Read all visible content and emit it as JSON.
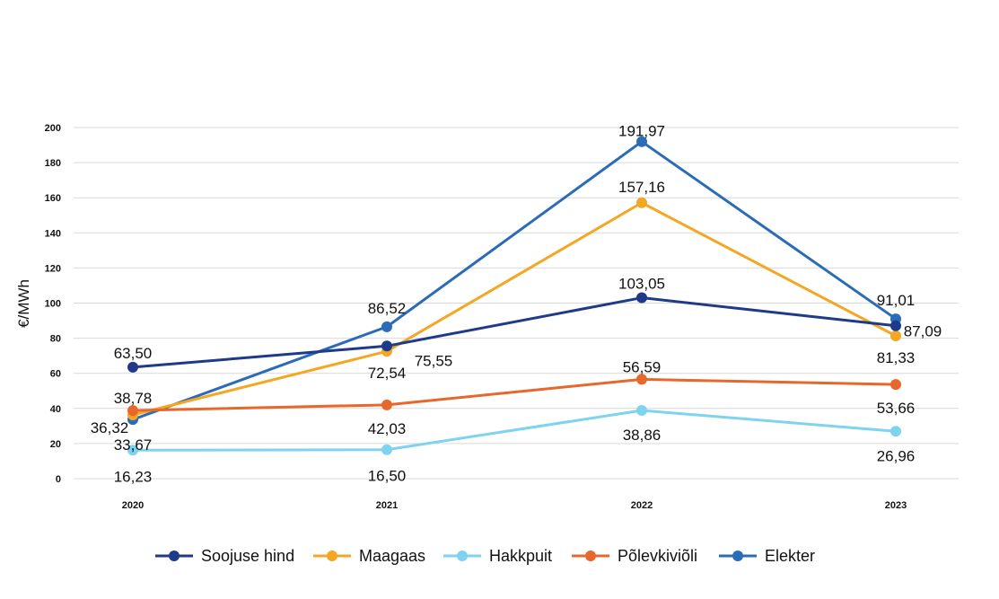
{
  "chart_data": {
    "type": "line",
    "ylabel": "€/MWh",
    "xlabel": "",
    "ylim": [
      0,
      200
    ],
    "yticks": [
      0,
      20,
      40,
      60,
      80,
      100,
      120,
      140,
      160,
      180,
      200
    ],
    "categories": [
      "2020",
      "2021",
      "2022",
      "2023"
    ],
    "grid": true,
    "legend_position": "bottom",
    "series": [
      {
        "name": "Soojuse hind",
        "color": "#1f3a8a",
        "values": [
          63.5,
          75.55,
          103.05,
          87.09
        ],
        "labels": [
          "63,50",
          "75,55",
          "103,05",
          "87,09"
        ]
      },
      {
        "name": "Maagaas",
        "color": "#f5a623",
        "values": [
          36.32,
          72.54,
          157.16,
          81.33
        ],
        "labels": [
          "36,32",
          "72,54",
          "157,16",
          "81,33"
        ]
      },
      {
        "name": "Hakkpuit",
        "color": "#7dd3f0",
        "values": [
          16.23,
          16.5,
          38.86,
          26.96
        ],
        "labels": [
          "16,23",
          "16,50",
          "38,86",
          "26,96"
        ]
      },
      {
        "name": "Põlevkiviõli",
        "color": "#e8672a",
        "values": [
          38.78,
          42.03,
          56.59,
          53.66
        ],
        "labels": [
          "38,78",
          "42,03",
          "56,59",
          "53,66"
        ]
      },
      {
        "name": "Elekter",
        "color": "#2b6cb8",
        "values": [
          33.67,
          86.52,
          191.97,
          91.01
        ],
        "labels": [
          "33,67",
          "86,52",
          "191,97",
          "91,01"
        ]
      }
    ]
  }
}
